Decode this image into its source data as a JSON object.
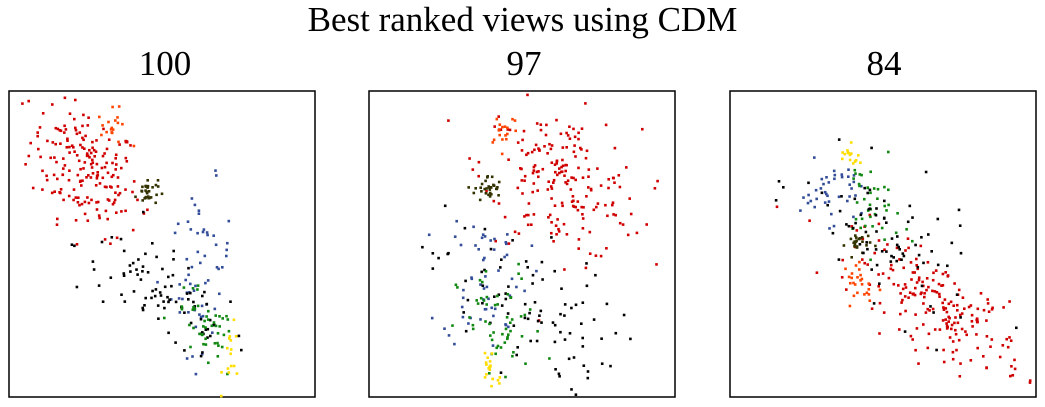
{
  "title": "Best ranked views using CDM",
  "colors": {
    "red": "#d00000",
    "orange": "#ff4400",
    "darkolive": "#333300",
    "blue": "#334d99",
    "black": "#000000",
    "green": "#118811",
    "yellow": "#ffdd00"
  },
  "chart_data": [
    {
      "type": "scatter",
      "title": "100",
      "xlabel": "",
      "ylabel": "",
      "axes": "hidden (box only)",
      "xlim": [
        0,
        100
      ],
      "ylim": [
        0,
        100
      ],
      "clusters": [
        {
          "color": "red",
          "count": 190,
          "center": [
            25,
            75
          ],
          "spread": [
            9,
            11
          ],
          "rho": -0.4
        },
        {
          "color": "orange",
          "count": 18,
          "center": [
            34,
            88
          ],
          "spread": [
            2.5,
            3
          ],
          "rho": 0
        },
        {
          "color": "darkolive",
          "count": 30,
          "center": [
            45,
            67
          ],
          "spread": [
            1.8,
            2.2
          ],
          "rho": 0
        },
        {
          "color": "blue",
          "count": 60,
          "center": [
            63,
            42
          ],
          "spread": [
            5,
            13
          ],
          "rho": 0.2
        },
        {
          "color": "black",
          "count": 90,
          "center": [
            50,
            33
          ],
          "spread": [
            14,
            11
          ],
          "rho": -0.75
        },
        {
          "color": "green",
          "count": 45,
          "center": [
            64,
            22
          ],
          "spread": [
            5,
            7
          ],
          "rho": -0.5
        },
        {
          "color": "yellow",
          "count": 15,
          "center": [
            73,
            13
          ],
          "spread": [
            1.6,
            5
          ],
          "rho": 0
        }
      ]
    },
    {
      "type": "scatter",
      "title": "97",
      "xlabel": "",
      "ylabel": "",
      "axes": "hidden (box only)",
      "xlim": [
        0,
        100
      ],
      "ylim": [
        0,
        100
      ],
      "clusters": [
        {
          "color": "red",
          "count": 200,
          "center": [
            63,
            70
          ],
          "spread": [
            13,
            12
          ],
          "rho": -0.25
        },
        {
          "color": "orange",
          "count": 18,
          "center": [
            44,
            88
          ],
          "spread": [
            2.5,
            3
          ],
          "rho": 0
        },
        {
          "color": "darkolive",
          "count": 30,
          "center": [
            39,
            68
          ],
          "spread": [
            2.2,
            2.2
          ],
          "rho": 0
        },
        {
          "color": "blue",
          "count": 55,
          "center": [
            38,
            40
          ],
          "spread": [
            7,
            12
          ],
          "rho": 0
        },
        {
          "color": "black",
          "count": 90,
          "center": [
            50,
            30
          ],
          "spread": [
            15,
            13
          ],
          "rho": -0.5
        },
        {
          "color": "green",
          "count": 55,
          "center": [
            43,
            22
          ],
          "spread": [
            7,
            10
          ],
          "rho": 0
        },
        {
          "color": "yellow",
          "count": 18,
          "center": [
            40,
            10
          ],
          "spread": [
            2,
            4
          ],
          "rho": 0
        }
      ]
    },
    {
      "type": "scatter",
      "title": "84",
      "xlabel": "",
      "ylabel": "",
      "axes": "hidden (box only)",
      "xlim": [
        0,
        100
      ],
      "ylim": [
        0,
        100
      ],
      "clusters": [
        {
          "color": "red",
          "count": 200,
          "center": [
            68,
            30
          ],
          "spread": [
            14,
            11
          ],
          "rho": -0.75
        },
        {
          "color": "orange",
          "count": 25,
          "center": [
            43,
            37
          ],
          "spread": [
            3,
            3
          ],
          "rho": -0.3
        },
        {
          "color": "darkolive",
          "count": 25,
          "center": [
            42,
            50
          ],
          "spread": [
            2,
            2
          ],
          "rho": 0
        },
        {
          "color": "blue",
          "count": 40,
          "center": [
            33,
            67
          ],
          "spread": [
            5,
            5
          ],
          "rho": 0
        },
        {
          "color": "green",
          "count": 40,
          "center": [
            46,
            63
          ],
          "spread": [
            5,
            8
          ],
          "rho": -0.3
        },
        {
          "color": "black",
          "count": 80,
          "center": [
            52,
            50
          ],
          "spread": [
            14,
            13
          ],
          "rho": -0.6
        },
        {
          "color": "yellow",
          "count": 15,
          "center": [
            39,
            78
          ],
          "spread": [
            2,
            2
          ],
          "rho": 0
        }
      ]
    }
  ]
}
